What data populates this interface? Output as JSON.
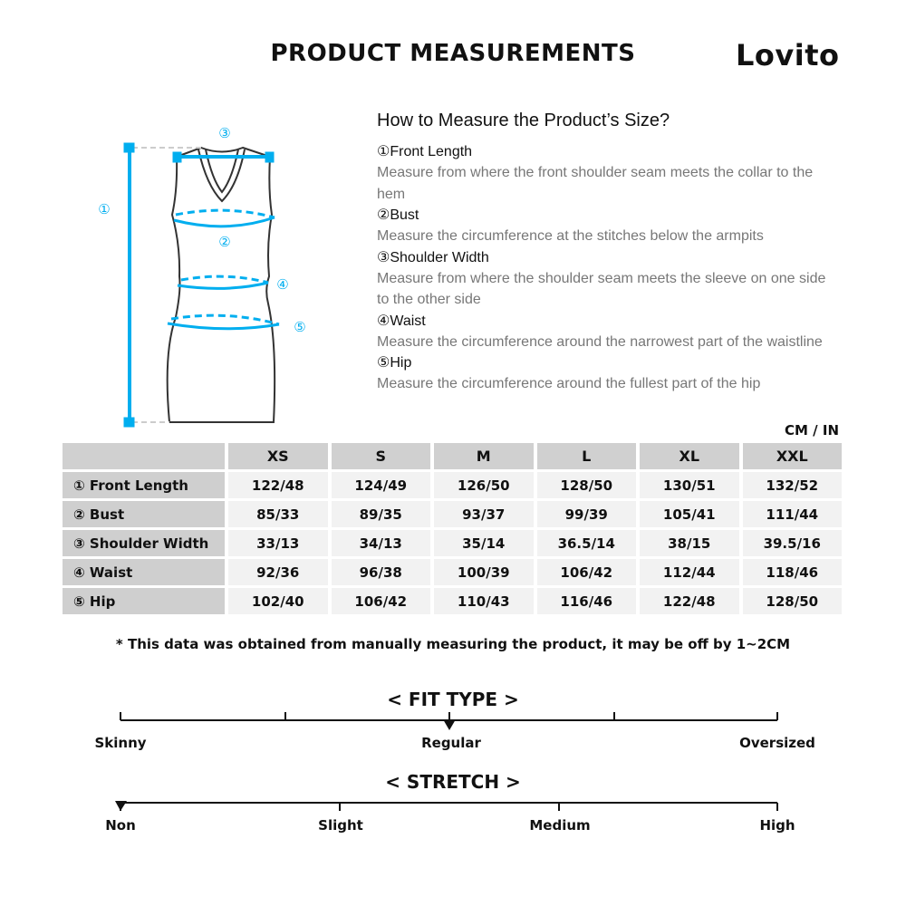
{
  "header": {
    "title": "PRODUCT MEASUREMENTS",
    "brand": "Lovito"
  },
  "guide": {
    "heading": "How to Measure the Product’s Size?",
    "steps": [
      {
        "title": "①Front Length",
        "desc": "Measure from where the front shoulder seam meets the collar to the hem"
      },
      {
        "title": "②Bust",
        "desc": "Measure the circumference at the stitches below the armpits"
      },
      {
        "title": "③Shoulder Width",
        "desc": "Measure from where the shoulder seam meets the sleeve on one side to the other side"
      },
      {
        "title": "④Waist",
        "desc": "Measure the circumference around the narrowest part of the waistline"
      },
      {
        "title": "⑤Hip",
        "desc": "Measure the circumference around the fullest part of the hip"
      }
    ],
    "markers": [
      "①",
      "②",
      "③",
      "④",
      "⑤"
    ],
    "accent": "#00aeef"
  },
  "table": {
    "unit": "CM / IN",
    "sizes": [
      "XS",
      "S",
      "M",
      "L",
      "XL",
      "XXL"
    ],
    "rows": [
      {
        "label": "① Front Length",
        "values": [
          "122/48",
          "124/49",
          "126/50",
          "128/50",
          "130/51",
          "132/52"
        ]
      },
      {
        "label": "② Bust",
        "values": [
          "85/33",
          "89/35",
          "93/37",
          "99/39",
          "105/41",
          "111/44"
        ]
      },
      {
        "label": "③ Shoulder Width",
        "values": [
          "33/13",
          "34/13",
          "35/14",
          "36.5/14",
          "38/15",
          "39.5/16"
        ]
      },
      {
        "label": "④ Waist",
        "values": [
          "92/36",
          "96/38",
          "100/39",
          "106/42",
          "112/44",
          "118/46"
        ]
      },
      {
        "label": "⑤ Hip",
        "values": [
          "102/40",
          "106/42",
          "110/43",
          "116/46",
          "122/48",
          "128/50"
        ]
      }
    ]
  },
  "note": "* This data was obtained from manually measuring the product, it may be off by 1~2CM",
  "fit": {
    "title": "< FIT TYPE >",
    "labels": [
      "Skinny",
      "Regular",
      "Oversized"
    ],
    "selected": "Regular"
  },
  "stretch": {
    "title": "< STRETCH >",
    "labels": [
      "Non",
      "Slight",
      "Medium",
      "High"
    ],
    "selected": "Non"
  }
}
